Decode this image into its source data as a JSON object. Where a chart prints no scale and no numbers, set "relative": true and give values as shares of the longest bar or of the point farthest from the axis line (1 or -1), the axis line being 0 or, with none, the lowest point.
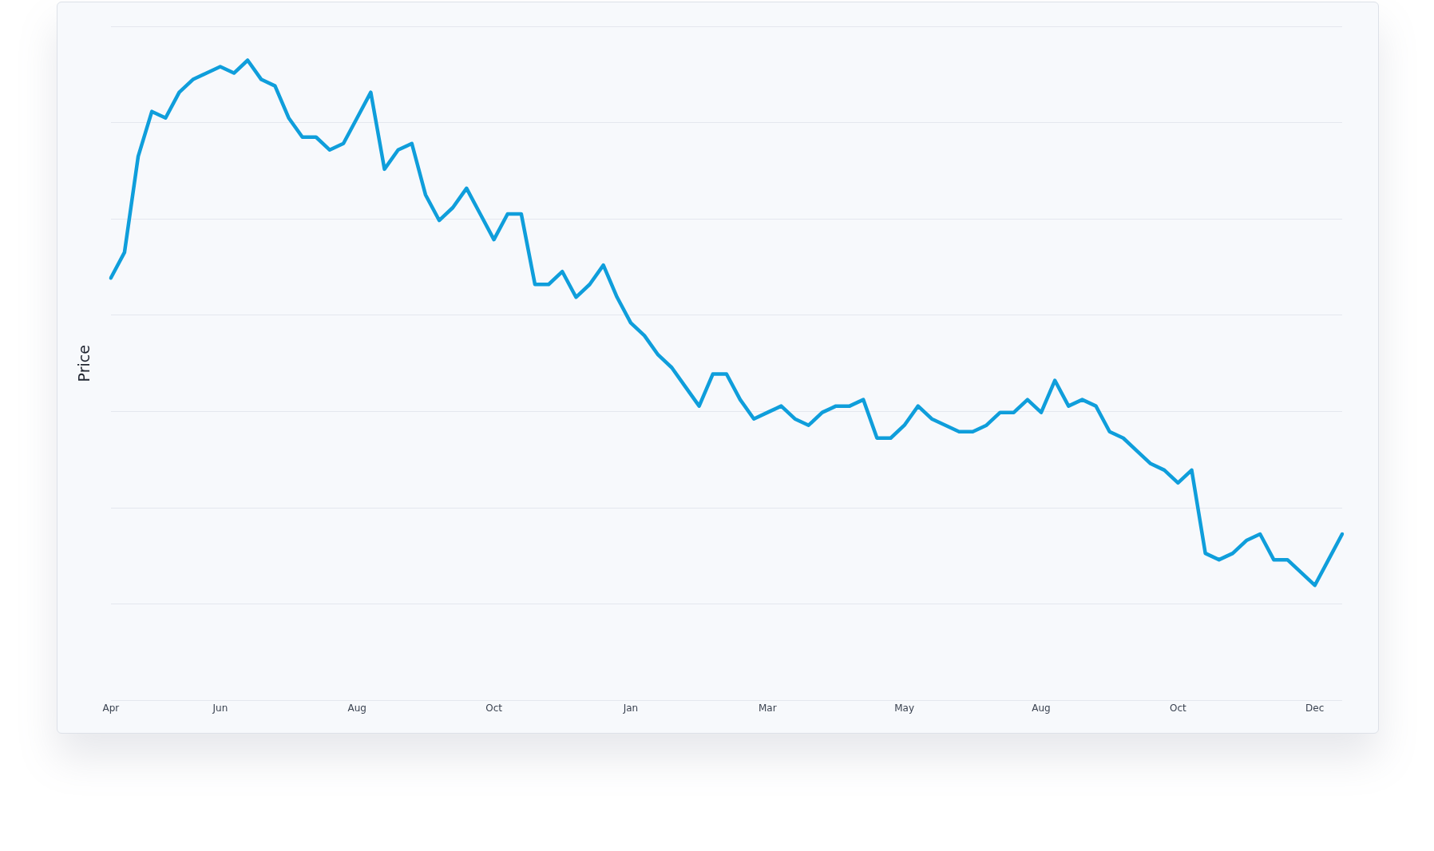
{
  "chart_data": {
    "type": "line",
    "ylabel": "Price",
    "relative": true,
    "grid": "y",
    "legend": false,
    "marker": "none",
    "line_style": "solid",
    "categories": [
      "Apr",
      null,
      null,
      null,
      null,
      null,
      null,
      null,
      "Jun",
      null,
      null,
      null,
      null,
      null,
      null,
      null,
      null,
      null,
      "Aug",
      null,
      null,
      null,
      null,
      null,
      null,
      null,
      null,
      null,
      "Oct",
      null,
      null,
      null,
      null,
      null,
      null,
      null,
      null,
      null,
      "Jan",
      null,
      null,
      null,
      null,
      null,
      null,
      null,
      null,
      null,
      "Mar",
      null,
      null,
      null,
      null,
      null,
      null,
      null,
      null,
      null,
      "May",
      null,
      null,
      null,
      null,
      null,
      null,
      null,
      null,
      null,
      "Aug",
      null,
      null,
      null,
      null,
      null,
      null,
      null,
      null,
      null,
      "Oct",
      null,
      null,
      null,
      null,
      null,
      null,
      null,
      null,
      null,
      "Dec",
      null,
      null
    ],
    "series": [
      {
        "color": "#0f9edb",
        "values": [
          0.66,
          0.7,
          0.85,
          0.92,
          0.91,
          0.95,
          0.97,
          0.98,
          0.99,
          0.98,
          1,
          0.97,
          0.96,
          0.91,
          0.88,
          0.88,
          0.86,
          0.87,
          0.91,
          0.95,
          0.83,
          0.86,
          0.87,
          0.79,
          0.75,
          0.77,
          0.8,
          0.76,
          0.72,
          0.76,
          0.76,
          0.65,
          0.65,
          0.67,
          0.63,
          0.65,
          0.68,
          0.63,
          0.59,
          0.57,
          0.54,
          0.52,
          0.49,
          0.46,
          0.51,
          0.51,
          0.47,
          0.44,
          0.45,
          0.46,
          0.44,
          0.43,
          0.45,
          0.46,
          0.46,
          0.47,
          0.41,
          0.41,
          0.43,
          0.46,
          0.44,
          0.43,
          0.42,
          0.42,
          0.43,
          0.45,
          0.45,
          0.47,
          0.45,
          0.5,
          0.46,
          0.47,
          0.46,
          0.42,
          0.41,
          0.39,
          0.37,
          0.36,
          0.34,
          0.36,
          0.23,
          0.22,
          0.23,
          0.25,
          0.26,
          0.22,
          0.22,
          0.2,
          0.18,
          0.22,
          0.26
        ]
      }
    ]
  }
}
